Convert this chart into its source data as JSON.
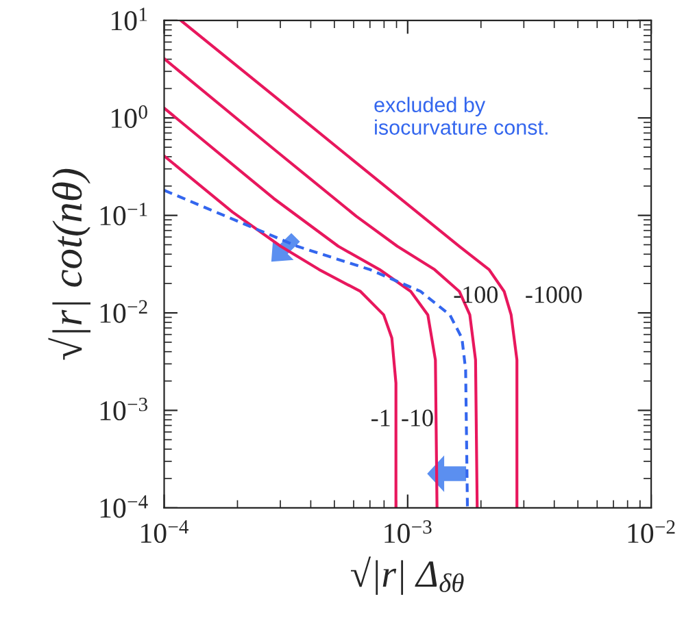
{
  "chart_data": {
    "type": "line",
    "xlabel": "√|r| Δ$_{δθ}$",
    "ylabel": "√|r| cot(nθ)",
    "log": "xy",
    "xlim": [
      0.0001,
      0.01
    ],
    "ylim": [
      0.0001,
      10
    ],
    "xticks": [
      {
        "value": 0.0001,
        "label": "10$^{−4}$"
      },
      {
        "value": 0.001,
        "label": "10$^{−3}$"
      },
      {
        "value": 0.01,
        "label": "10$^{−2}$"
      }
    ],
    "yticks": [
      {
        "value": 0.0001,
        "label": "10$^{−4}$"
      },
      {
        "value": 0.001,
        "label": "10$^{−3}$"
      },
      {
        "value": 0.01,
        "label": "10$^{−2}$"
      },
      {
        "value": 0.1,
        "label": "10$^{−1}$"
      },
      {
        "value": 1,
        "label": "10$^{0}$"
      },
      {
        "value": 10,
        "label": "10$^{1}$"
      }
    ],
    "series": [
      {
        "color": "#e8175d",
        "line_style": "solid",
        "x": [
          0.000117,
          0.000282,
          0.000615,
          0.00163,
          0.00216,
          0.00249,
          0.00266,
          0.00281,
          0.00281
        ],
        "values": [
          10,
          1.69,
          0.346,
          0.0482,
          0.0278,
          0.0166,
          0.00955,
          0.00329,
          0.0001
        ]
      },
      {
        "color": "#e8175d",
        "line_style": "solid",
        "x": [
          0.0001,
          0.000282,
          0.000615,
          0.000907,
          0.00129,
          0.00163,
          0.0018,
          0.0019,
          0.00193
        ],
        "values": [
          4.05,
          0.479,
          0.098,
          0.0482,
          0.0278,
          0.0166,
          0.00955,
          0.00329,
          0.0001
        ]
      },
      {
        "color": "#e8175d",
        "line_style": "solid",
        "x": [
          0.0001,
          0.000282,
          0.000519,
          0.000767,
          0.00103,
          0.00121,
          0.0013,
          0.00132
        ],
        "values": [
          1.26,
          0.149,
          0.0482,
          0.0278,
          0.0166,
          0.00955,
          0.00329,
          0.0001
        ]
      },
      {
        "color": "#e8175d",
        "line_style": "solid",
        "x": [
          0.0001,
          0.000191,
          0.000301,
          0.000433,
          0.00064,
          0.000797,
          0.000861,
          0.000895,
          0.000895
        ],
        "values": [
          0.407,
          0.108,
          0.0482,
          0.0278,
          0.0166,
          0.00955,
          0.00552,
          0.0019,
          0.0001
        ]
      },
      {
        "color": "#3366ee",
        "line_style": "dashed",
        "x": [
          0.0001,
          0.000352,
          0.0007,
          0.00113,
          0.00149,
          0.00167,
          0.00173,
          0.00176
        ],
        "values": [
          0.181,
          0.0482,
          0.0278,
          0.0166,
          0.00955,
          0.00552,
          0.00262,
          0.0001
        ]
      }
    ],
    "annotations": [
      "-1000",
      "-100",
      "-10",
      "-1",
      "excluded by\nisocurvature const."
    ]
  }
}
